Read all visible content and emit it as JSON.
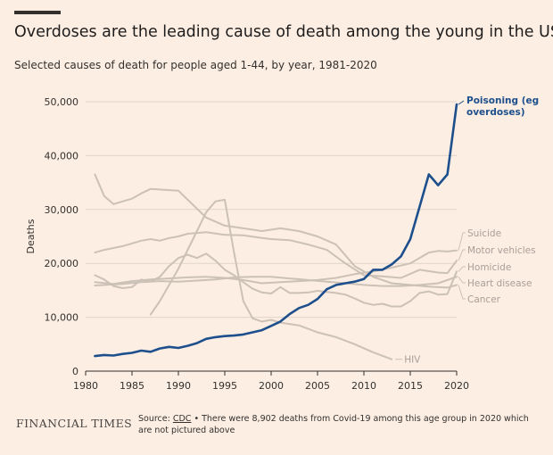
{
  "header": {
    "title": "Overdoses are the leading cause of death among the young in the US",
    "subtitle": "Selected causes of death for people aged 1-44, by year, 1981-2020"
  },
  "footer": {
    "brand": "FINANCIAL TIMES",
    "source_prefix": "Source: ",
    "source_name": "CDC",
    "note": " • There were 8,902 deaths from Covid-19 among this age group in 2020 which are not pictured above"
  },
  "colors": {
    "background": "#FCEEE3",
    "highlight": "#1D4F8C",
    "muted": "#CCC1B7",
    "grid": "#E0D4CB",
    "text": "#33302E"
  },
  "chart_data": {
    "type": "line",
    "ylabel": "Deaths",
    "xlabel": "",
    "xlim": [
      1980,
      2020
    ],
    "ylim": [
      0,
      50000
    ],
    "x_ticks": [
      "1980",
      "1985",
      "1990",
      "1995",
      "2000",
      "2005",
      "2010",
      "2015",
      "2020"
    ],
    "y_ticks": [
      "0",
      "10,000",
      "20,000",
      "30,000",
      "40,000",
      "50,000"
    ],
    "grid": true,
    "series": [
      {
        "name": "Poisoning (eg overdoses)",
        "highlight": true,
        "points": [
          [
            1981,
            2800
          ],
          [
            1982,
            3000
          ],
          [
            1983,
            2900
          ],
          [
            1984,
            3200
          ],
          [
            1985,
            3400
          ],
          [
            1986,
            3800
          ],
          [
            1987,
            3600
          ],
          [
            1988,
            4200
          ],
          [
            1989,
            4500
          ],
          [
            1990,
            4300
          ],
          [
            1991,
            4700
          ],
          [
            1992,
            5200
          ],
          [
            1993,
            6000
          ],
          [
            1994,
            6300
          ],
          [
            1995,
            6500
          ],
          [
            1996,
            6600
          ],
          [
            1997,
            6800
          ],
          [
            1998,
            7200
          ],
          [
            1999,
            7600
          ],
          [
            2000,
            8400
          ],
          [
            2001,
            9200
          ],
          [
            2002,
            10600
          ],
          [
            2003,
            11700
          ],
          [
            2004,
            12300
          ],
          [
            2005,
            13400
          ],
          [
            2006,
            15200
          ],
          [
            2007,
            16000
          ],
          [
            2008,
            16300
          ],
          [
            2009,
            16600
          ],
          [
            2010,
            17100
          ],
          [
            2011,
            18800
          ],
          [
            2012,
            18800
          ],
          [
            2013,
            19800
          ],
          [
            2014,
            21300
          ],
          [
            2015,
            24500
          ],
          [
            2016,
            30500
          ],
          [
            2017,
            36500
          ],
          [
            2018,
            34500
          ],
          [
            2019,
            36500
          ],
          [
            2020,
            49500
          ]
        ]
      },
      {
        "name": "Suicide",
        "highlight": false,
        "points": [
          [
            1981,
            16500
          ],
          [
            1983,
            16200
          ],
          [
            1985,
            16700
          ],
          [
            1987,
            17000
          ],
          [
            1989,
            17200
          ],
          [
            1991,
            17400
          ],
          [
            1993,
            17500
          ],
          [
            1995,
            17300
          ],
          [
            1997,
            16900
          ],
          [
            1999,
            16300
          ],
          [
            2001,
            16500
          ],
          [
            2003,
            16700
          ],
          [
            2005,
            16900
          ],
          [
            2007,
            17300
          ],
          [
            2009,
            18000
          ],
          [
            2011,
            18500
          ],
          [
            2013,
            19200
          ],
          [
            2015,
            20000
          ],
          [
            2017,
            22000
          ],
          [
            2018,
            22300
          ],
          [
            2019,
            22200
          ],
          [
            2020,
            22400
          ]
        ]
      },
      {
        "name": "Motor vehicles",
        "highlight": false,
        "points": [
          [
            1981,
            22000
          ],
          [
            1982,
            22500
          ],
          [
            1984,
            23200
          ],
          [
            1986,
            24200
          ],
          [
            1987,
            24500
          ],
          [
            1988,
            24200
          ],
          [
            1989,
            24700
          ],
          [
            1990,
            25000
          ],
          [
            1991,
            25500
          ],
          [
            1993,
            25800
          ],
          [
            1995,
            25300
          ],
          [
            1997,
            25200
          ],
          [
            1999,
            24700
          ],
          [
            2000,
            24500
          ],
          [
            2002,
            24300
          ],
          [
            2004,
            23500
          ],
          [
            2006,
            22500
          ],
          [
            2008,
            20000
          ],
          [
            2010,
            17800
          ],
          [
            2012,
            17600
          ],
          [
            2014,
            17300
          ],
          [
            2016,
            18800
          ],
          [
            2018,
            18300
          ],
          [
            2019,
            18200
          ],
          [
            2020,
            20500
          ]
        ]
      },
      {
        "name": "Homicide",
        "highlight": false,
        "points": [
          [
            1981,
            17800
          ],
          [
            1982,
            17000
          ],
          [
            1983,
            15800
          ],
          [
            1984,
            15400
          ],
          [
            1985,
            15600
          ],
          [
            1986,
            17000
          ],
          [
            1987,
            16600
          ],
          [
            1988,
            17500
          ],
          [
            1989,
            19500
          ],
          [
            1990,
            21000
          ],
          [
            1991,
            21600
          ],
          [
            1992,
            21000
          ],
          [
            1993,
            21800
          ],
          [
            1994,
            20500
          ],
          [
            1995,
            18800
          ],
          [
            1996,
            17800
          ],
          [
            1997,
            16500
          ],
          [
            1998,
            15300
          ],
          [
            1999,
            14600
          ],
          [
            2000,
            14400
          ],
          [
            2001,
            15600
          ],
          [
            2002,
            14500
          ],
          [
            2003,
            14500
          ],
          [
            2004,
            14600
          ],
          [
            2005,
            14900
          ],
          [
            2006,
            14700
          ],
          [
            2007,
            14500
          ],
          [
            2008,
            14200
          ],
          [
            2009,
            13500
          ],
          [
            2010,
            12700
          ],
          [
            2011,
            12300
          ],
          [
            2012,
            12500
          ],
          [
            2013,
            12000
          ],
          [
            2014,
            12000
          ],
          [
            2015,
            13000
          ],
          [
            2016,
            14500
          ],
          [
            2017,
            14800
          ],
          [
            2018,
            14200
          ],
          [
            2019,
            14300
          ],
          [
            2020,
            18500
          ]
        ]
      },
      {
        "name": "Heart disease",
        "highlight": false,
        "points": [
          [
            1981,
            15900
          ],
          [
            1984,
            16200
          ],
          [
            1986,
            16500
          ],
          [
            1988,
            16700
          ],
          [
            1990,
            16600
          ],
          [
            1992,
            16800
          ],
          [
            1994,
            17000
          ],
          [
            1996,
            17400
          ],
          [
            1998,
            17500
          ],
          [
            2000,
            17500
          ],
          [
            2002,
            17200
          ],
          [
            2004,
            16900
          ],
          [
            2006,
            16600
          ],
          [
            2008,
            16300
          ],
          [
            2010,
            16000
          ],
          [
            2012,
            15800
          ],
          [
            2014,
            15800
          ],
          [
            2016,
            16000
          ],
          [
            2018,
            16300
          ],
          [
            2020,
            17500
          ]
        ]
      },
      {
        "name": "Cancer",
        "highlight": false,
        "points": [
          [
            1981,
            36500
          ],
          [
            1982,
            32500
          ],
          [
            1983,
            31000
          ],
          [
            1984,
            31500
          ],
          [
            1985,
            32000
          ],
          [
            1986,
            33000
          ],
          [
            1987,
            33800
          ],
          [
            1989,
            33600
          ],
          [
            1990,
            33500
          ],
          [
            1991,
            31800
          ],
          [
            1993,
            28500
          ],
          [
            1995,
            27000
          ],
          [
            1997,
            26500
          ],
          [
            1999,
            26000
          ],
          [
            2001,
            26500
          ],
          [
            2003,
            26000
          ],
          [
            2005,
            25000
          ],
          [
            2007,
            23500
          ],
          [
            2009,
            19500
          ],
          [
            2011,
            17500
          ],
          [
            2013,
            16300
          ],
          [
            2015,
            16000
          ],
          [
            2017,
            15700
          ],
          [
            2019,
            15500
          ],
          [
            2020,
            16000
          ]
        ]
      },
      {
        "name": "HIV",
        "highlight": false,
        "points": [
          [
            1987,
            10500
          ],
          [
            1988,
            13000
          ],
          [
            1989,
            16000
          ],
          [
            1990,
            19000
          ],
          [
            1991,
            22500
          ],
          [
            1992,
            26000
          ],
          [
            1993,
            29500
          ],
          [
            1994,
            31500
          ],
          [
            1995,
            31800
          ],
          [
            1996,
            22000
          ],
          [
            1997,
            13000
          ],
          [
            1998,
            9800
          ],
          [
            1999,
            9200
          ],
          [
            2000,
            9500
          ],
          [
            2001,
            9000
          ],
          [
            2003,
            8500
          ],
          [
            2005,
            7200
          ],
          [
            2007,
            6300
          ],
          [
            2009,
            5000
          ],
          [
            2011,
            3500
          ],
          [
            2013,
            2200
          ]
        ]
      }
    ]
  }
}
